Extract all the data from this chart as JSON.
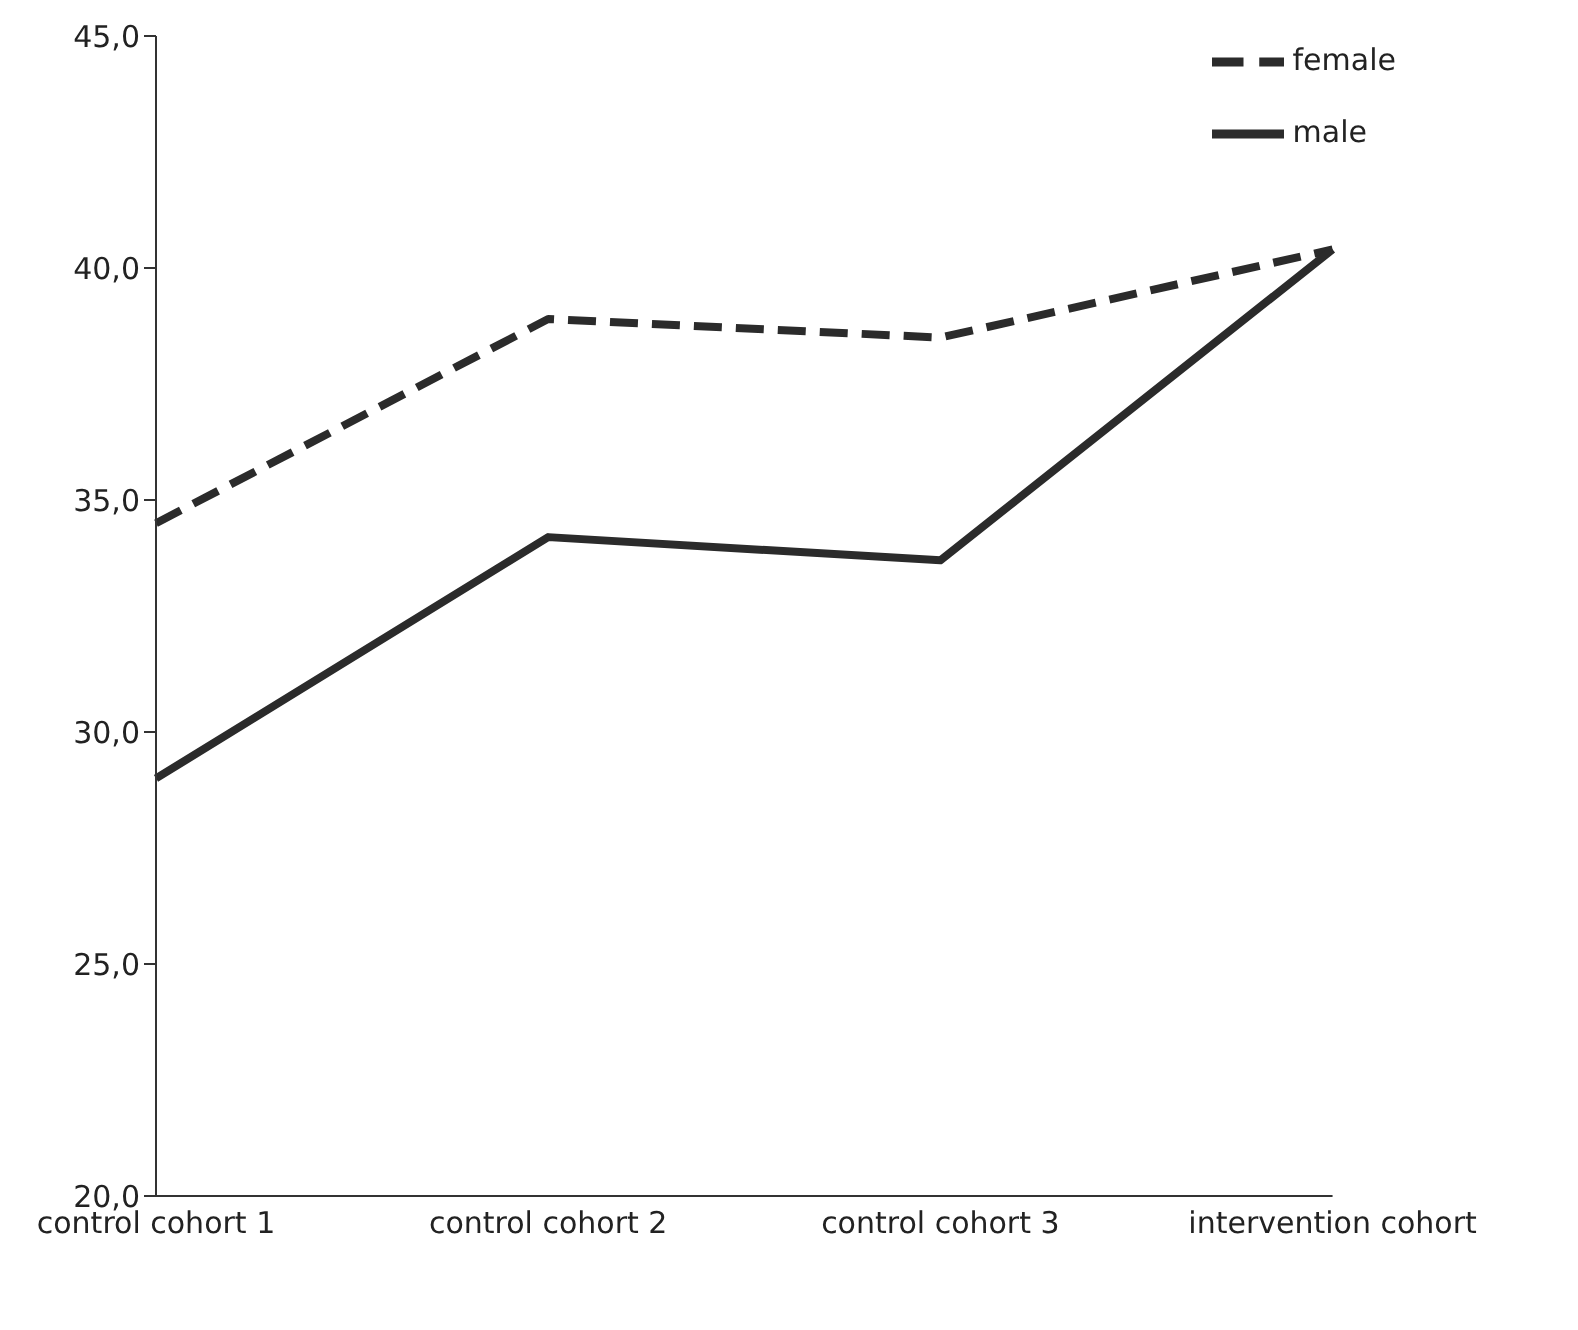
{
  "chart_data": {
    "type": "line",
    "categories": [
      "control cohort 1",
      "control cohort 2",
      "control cohort 3",
      "intervention cohort"
    ],
    "series": [
      {
        "name": "female",
        "color": "#2b2b2b",
        "line_style": "dashed",
        "values": [
          34.5,
          38.9,
          38.5,
          40.4
        ]
      },
      {
        "name": "male",
        "color": "#2b2b2b",
        "line_style": "solid",
        "values": [
          29.0,
          34.2,
          33.7,
          40.4
        ]
      }
    ],
    "ylim": [
      20,
      45
    ],
    "yticks": [
      {
        "value": 20,
        "label": "20,0"
      },
      {
        "value": 25,
        "label": "25,0"
      },
      {
        "value": 30,
        "label": "30,0"
      },
      {
        "value": 35,
        "label": "35,0"
      },
      {
        "value": 40,
        "label": "40,0"
      },
      {
        "value": 45,
        "label": "45,0"
      }
    ],
    "grid": false,
    "legend": "top right",
    "marker": "none"
  }
}
